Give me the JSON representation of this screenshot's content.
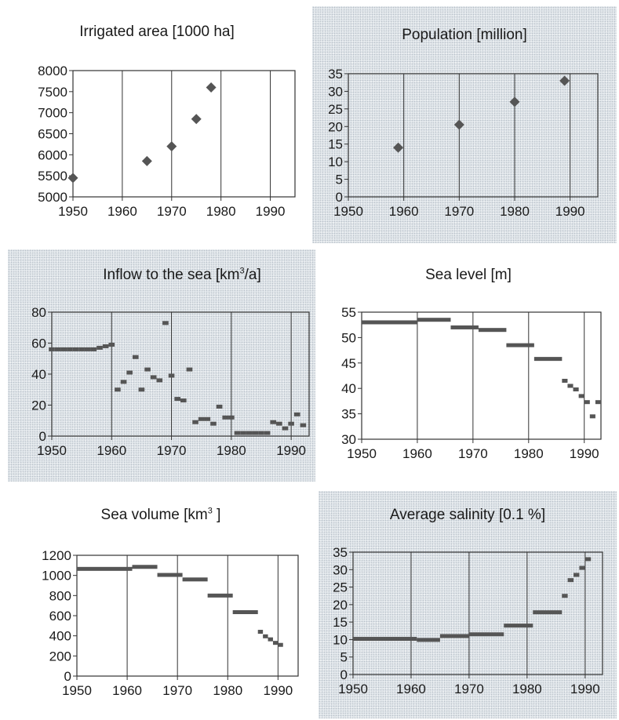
{
  "chart_data": [
    {
      "type": "scatter",
      "title": "Irrigated area [1000 ha]",
      "xlim": [
        1950,
        1995
      ],
      "ylim": [
        5000,
        8000
      ],
      "xticks": [
        "1950",
        "1960",
        "1970",
        "1980",
        "1990"
      ],
      "yticks": [
        "5000",
        "5500",
        "6000",
        "6500",
        "7000",
        "7500",
        "8000"
      ],
      "points": [
        [
          1950,
          5450
        ],
        [
          1965,
          5850
        ],
        [
          1970,
          6200
        ],
        [
          1975,
          6850
        ],
        [
          1978,
          7600
        ]
      ],
      "grid": "vertical",
      "marker": "diamond",
      "color": "#555555"
    },
    {
      "type": "scatter",
      "title": "Population [million]",
      "xlim": [
        1950,
        1995
      ],
      "ylim": [
        0,
        35
      ],
      "xticks": [
        "1950",
        "1960",
        "1970",
        "1980",
        "1990"
      ],
      "yticks": [
        "0",
        "5",
        "10",
        "15",
        "20",
        "25",
        "30",
        "35"
      ],
      "points": [
        [
          1959,
          14
        ],
        [
          1970,
          20.5
        ],
        [
          1980,
          27
        ],
        [
          1989,
          33
        ]
      ],
      "grid": "vertical",
      "marker": "diamond",
      "color": "#555555"
    },
    {
      "type": "scatter",
      "title": "Inflow to the sea [km³/a]",
      "xlim": [
        1950,
        1993
      ],
      "ylim": [
        0,
        80
      ],
      "xticks": [
        "1950",
        "1960",
        "1970",
        "1980",
        "1990"
      ],
      "yticks": [
        "0",
        "20",
        "40",
        "60",
        "80"
      ],
      "points": [
        [
          1950,
          56
        ],
        [
          1951,
          56
        ],
        [
          1952,
          56
        ],
        [
          1953,
          56
        ],
        [
          1954,
          56
        ],
        [
          1955,
          56
        ],
        [
          1956,
          56
        ],
        [
          1957,
          56
        ],
        [
          1958,
          57
        ],
        [
          1959,
          58
        ],
        [
          1960,
          59
        ],
        [
          1961,
          30
        ],
        [
          1962,
          35
        ],
        [
          1963,
          41
        ],
        [
          1964,
          51
        ],
        [
          1965,
          30
        ],
        [
          1966,
          43
        ],
        [
          1967,
          38
        ],
        [
          1968,
          36
        ],
        [
          1969,
          73
        ],
        [
          1970,
          39
        ],
        [
          1971,
          24
        ],
        [
          1972,
          23
        ],
        [
          1973,
          43
        ],
        [
          1974,
          9
        ],
        [
          1975,
          11
        ],
        [
          1976,
          11
        ],
        [
          1977,
          8
        ],
        [
          1978,
          19
        ],
        [
          1979,
          12
        ],
        [
          1980,
          12
        ],
        [
          1981,
          2
        ],
        [
          1982,
          2
        ],
        [
          1983,
          2
        ],
        [
          1984,
          2
        ],
        [
          1985,
          2
        ],
        [
          1986,
          2
        ],
        [
          1987,
          9
        ],
        [
          1988,
          8
        ],
        [
          1989,
          5
        ],
        [
          1990,
          8
        ],
        [
          1991,
          14
        ],
        [
          1992,
          7
        ]
      ],
      "grid": "vertical",
      "marker": "dash",
      "color": "#555555"
    },
    {
      "type": "step",
      "title": "Sea level [m]",
      "xlim": [
        1950,
        1993
      ],
      "ylim": [
        30,
        55
      ],
      "xticks": [
        "1950",
        "1960",
        "1970",
        "1980",
        "1990"
      ],
      "yticks": [
        "30",
        "35",
        "40",
        "45",
        "50",
        "55"
      ],
      "segments": [
        [
          1950,
          1960,
          53
        ],
        [
          1960,
          1966,
          53.5
        ],
        [
          1966,
          1971,
          52
        ],
        [
          1971,
          1976,
          51.5
        ],
        [
          1976,
          1981,
          48.5
        ],
        [
          1981,
          1986,
          45.8
        ],
        [
          1986,
          1987,
          41.5
        ],
        [
          1987,
          1988,
          40.5
        ],
        [
          1988,
          1989,
          39.8
        ],
        [
          1989,
          1990,
          38.5
        ],
        [
          1990,
          1991,
          37.3
        ],
        [
          1991,
          1992,
          34.5
        ],
        [
          1992,
          1993,
          37.3
        ]
      ],
      "grid": "vertical",
      "color": "#555555"
    },
    {
      "type": "step",
      "title": "Sea volume [km³ ]",
      "xlim": [
        1950,
        1994
      ],
      "ylim": [
        0,
        1200
      ],
      "xticks": [
        "1950",
        "1960",
        "1970",
        "1980",
        "1990"
      ],
      "yticks": [
        "0",
        "200",
        "400",
        "600",
        "800",
        "1000",
        "1200"
      ],
      "segments": [
        [
          1950,
          1961,
          1065
        ],
        [
          1961,
          1966,
          1085
        ],
        [
          1966,
          1971,
          1005
        ],
        [
          1971,
          1976,
          960
        ],
        [
          1976,
          1981,
          800
        ],
        [
          1981,
          1986,
          635
        ],
        [
          1986,
          1987,
          440
        ],
        [
          1987,
          1988,
          395
        ],
        [
          1988,
          1989,
          365
        ],
        [
          1989,
          1990,
          330
        ],
        [
          1990,
          1991,
          310
        ]
      ],
      "grid": "vertical",
      "color": "#555555"
    },
    {
      "type": "step",
      "title": "Average salinity [0.1 %]",
      "xlim": [
        1950,
        1993
      ],
      "ylim": [
        0,
        35
      ],
      "xticks": [
        "1950",
        "1960",
        "1970",
        "1980",
        "1990"
      ],
      "yticks": [
        "0",
        "5",
        "10",
        "15",
        "20",
        "25",
        "30",
        "35"
      ],
      "segments": [
        [
          1950,
          1961,
          10.2
        ],
        [
          1961,
          1965,
          9.9
        ],
        [
          1965,
          1970,
          11
        ],
        [
          1970,
          1976,
          11.5
        ],
        [
          1976,
          1981,
          14
        ],
        [
          1981,
          1986,
          17.8
        ],
        [
          1986,
          1987,
          22.5
        ],
        [
          1987,
          1988,
          27
        ],
        [
          1988,
          1989,
          28.5
        ],
        [
          1989,
          1990,
          30.5
        ],
        [
          1990,
          1991,
          33
        ]
      ],
      "grid": "vertical",
      "color": "#555555"
    }
  ]
}
